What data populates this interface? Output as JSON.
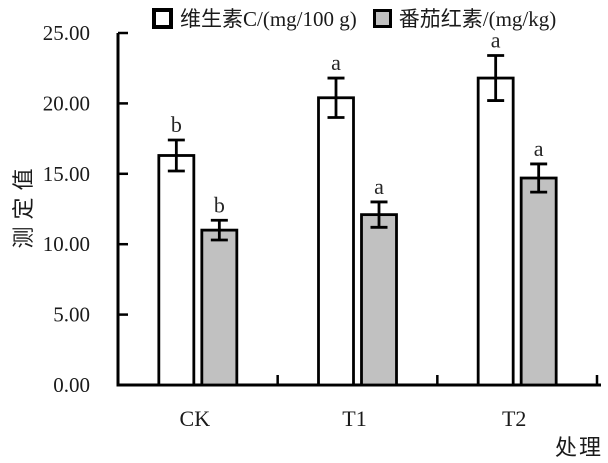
{
  "chart_data": {
    "type": "bar",
    "title": "",
    "categories": [
      "CK",
      "T1",
      "T2"
    ],
    "series": [
      {
        "name": "维生素C/(mg/100 g)",
        "key": "vitamin-c",
        "fill": "#ffffff",
        "values": [
          16.3,
          20.4,
          21.8
        ],
        "errors": [
          1.1,
          1.4,
          1.6
        ],
        "sig_letters": [
          "b",
          "a",
          "a"
        ]
      },
      {
        "name": "番茄红素/(mg/kg)",
        "key": "lycopene",
        "fill": "#c1c1c1",
        "values": [
          11.0,
          12.1,
          14.7
        ],
        "errors": [
          0.7,
          0.9,
          1.0
        ],
        "sig_letters": [
          "b",
          "a",
          "a"
        ]
      }
    ],
    "xlabel": "处理",
    "ylabel": "测定值",
    "ylim": [
      0,
      25
    ],
    "y_tick_step": 5,
    "y_tick_decimals": 2,
    "y_tick_labels": [
      "0.00",
      "5.00",
      "10.00",
      "15.00",
      "20.00",
      "25.00"
    ],
    "grid": false,
    "legend_position": "top",
    "bar_border_color": "#000000",
    "text_color": "#1a1a1a",
    "sig_letter_color": "#262626"
  }
}
